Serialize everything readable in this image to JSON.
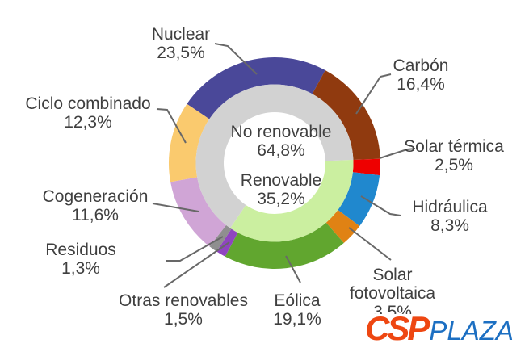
{
  "page": {
    "background": "#ffffff",
    "text_color": "#3f3f3f"
  },
  "chart_data": {
    "type": "pie",
    "subtype": "double-ring-donut",
    "title": "",
    "units": "%",
    "legend_position": "none",
    "outer_ring": {
      "start_angle_deg": -56,
      "segments": [
        {
          "id": "nuclear",
          "label": "Nuclear",
          "value": 23.5,
          "pct_label": "23,5%",
          "color": "#4a4899"
        },
        {
          "id": "carbon",
          "label": "Carbón",
          "value": 16.4,
          "pct_label": "16,4%",
          "color": "#903a0f"
        },
        {
          "id": "solar-termica",
          "label": "Solar térmica",
          "value": 2.5,
          "pct_label": "2,5%",
          "color": "#ee0000"
        },
        {
          "id": "hidraulica",
          "label": "Hidráulica",
          "value": 8.3,
          "pct_label": "8,3%",
          "color": "#2088ce"
        },
        {
          "id": "solar-fotovoltaica",
          "label": "Solar fotovoltaica",
          "value": 3.5,
          "pct_label": "3,5%",
          "color": "#e08214"
        },
        {
          "id": "eolica",
          "label": "Eólica",
          "value": 19.1,
          "pct_label": "19,1%",
          "color": "#61a62f"
        },
        {
          "id": "otras-renovables",
          "label": "Otras renovables",
          "value": 1.5,
          "pct_label": "1,5%",
          "color": "#8f45c0"
        },
        {
          "id": "residuos",
          "label": "Residuos",
          "value": 1.3,
          "pct_label": "1,3%",
          "color": "#8f8f8f"
        },
        {
          "id": "cogeneracion",
          "label": "Cogeneración",
          "value": 11.6,
          "pct_label": "11,6%",
          "color": "#d0a5d6"
        },
        {
          "id": "ciclo-combinado",
          "label": "Ciclo combinado",
          "value": 12.3,
          "pct_label": "12,3%",
          "color": "#faca6e"
        }
      ]
    },
    "inner_ring": {
      "start_angle_deg": 87.6,
      "segments": [
        {
          "id": "renovable",
          "label": "Renovable",
          "value": 35.2,
          "pct_label": "35,2%",
          "color": "#cbefa0"
        },
        {
          "id": "no-renovable",
          "label": "No renovable",
          "value": 64.8,
          "pct_label": "64,8%",
          "color": "#d2d2d2"
        }
      ]
    },
    "center_labels": {
      "no_renovable": {
        "label": "No renovable",
        "pct_label": "64,8%"
      },
      "renovable": {
        "label": "Renovable",
        "pct_label": "35,2%"
      }
    }
  },
  "logo": {
    "csp": "CSP",
    "plaza": "PLAZA",
    "csp_color": "#ee4712",
    "plaza_color": "#1c6fc2"
  }
}
